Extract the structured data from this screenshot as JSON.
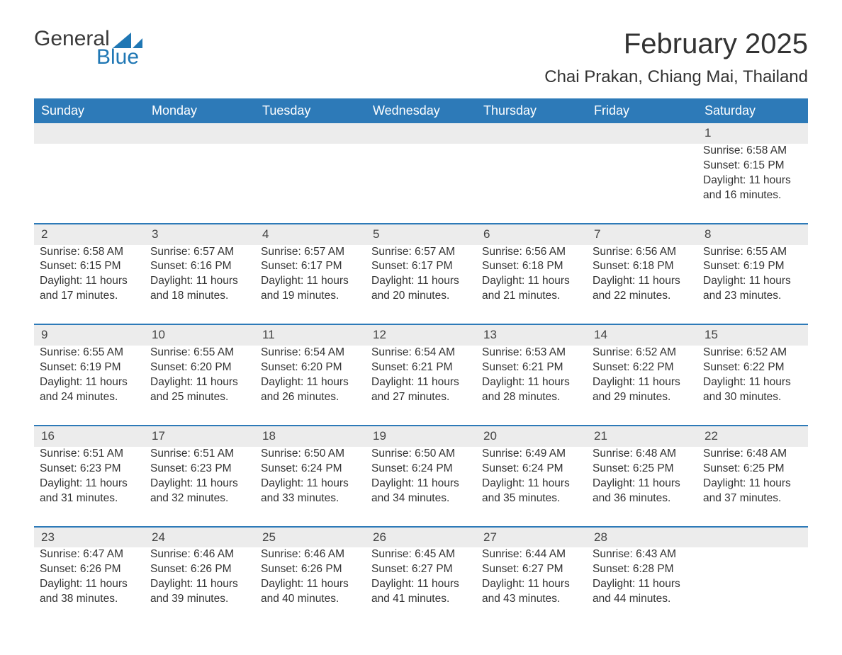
{
  "logo": {
    "top": "General",
    "bottom": "Blue",
    "icon_color": "#1f77b4"
  },
  "title": "February 2025",
  "location": "Chai Prakan, Chiang Mai, Thailand",
  "weekdays": [
    "Sunday",
    "Monday",
    "Tuesday",
    "Wednesday",
    "Thursday",
    "Friday",
    "Saturday"
  ],
  "colors": {
    "header_bg": "#2d7ab8",
    "header_text": "#ffffff",
    "daynum_bg": "#ececec",
    "row_sep": "#2d7ab8",
    "text": "#333333",
    "background": "#ffffff"
  },
  "typography": {
    "title_fontsize": 40,
    "location_fontsize": 24,
    "weekday_fontsize": 18,
    "body_fontsize": 15.5
  },
  "calendar": {
    "type": "table",
    "weeks": [
      [
        null,
        null,
        null,
        null,
        null,
        null,
        {
          "day": "1",
          "sunrise": "Sunrise: 6:58 AM",
          "sunset": "Sunset: 6:15 PM",
          "daylight1": "Daylight: 11 hours",
          "daylight2": "and 16 minutes."
        }
      ],
      [
        {
          "day": "2",
          "sunrise": "Sunrise: 6:58 AM",
          "sunset": "Sunset: 6:15 PM",
          "daylight1": "Daylight: 11 hours",
          "daylight2": "and 17 minutes."
        },
        {
          "day": "3",
          "sunrise": "Sunrise: 6:57 AM",
          "sunset": "Sunset: 6:16 PM",
          "daylight1": "Daylight: 11 hours",
          "daylight2": "and 18 minutes."
        },
        {
          "day": "4",
          "sunrise": "Sunrise: 6:57 AM",
          "sunset": "Sunset: 6:17 PM",
          "daylight1": "Daylight: 11 hours",
          "daylight2": "and 19 minutes."
        },
        {
          "day": "5",
          "sunrise": "Sunrise: 6:57 AM",
          "sunset": "Sunset: 6:17 PM",
          "daylight1": "Daylight: 11 hours",
          "daylight2": "and 20 minutes."
        },
        {
          "day": "6",
          "sunrise": "Sunrise: 6:56 AM",
          "sunset": "Sunset: 6:18 PM",
          "daylight1": "Daylight: 11 hours",
          "daylight2": "and 21 minutes."
        },
        {
          "day": "7",
          "sunrise": "Sunrise: 6:56 AM",
          "sunset": "Sunset: 6:18 PM",
          "daylight1": "Daylight: 11 hours",
          "daylight2": "and 22 minutes."
        },
        {
          "day": "8",
          "sunrise": "Sunrise: 6:55 AM",
          "sunset": "Sunset: 6:19 PM",
          "daylight1": "Daylight: 11 hours",
          "daylight2": "and 23 minutes."
        }
      ],
      [
        {
          "day": "9",
          "sunrise": "Sunrise: 6:55 AM",
          "sunset": "Sunset: 6:19 PM",
          "daylight1": "Daylight: 11 hours",
          "daylight2": "and 24 minutes."
        },
        {
          "day": "10",
          "sunrise": "Sunrise: 6:55 AM",
          "sunset": "Sunset: 6:20 PM",
          "daylight1": "Daylight: 11 hours",
          "daylight2": "and 25 minutes."
        },
        {
          "day": "11",
          "sunrise": "Sunrise: 6:54 AM",
          "sunset": "Sunset: 6:20 PM",
          "daylight1": "Daylight: 11 hours",
          "daylight2": "and 26 minutes."
        },
        {
          "day": "12",
          "sunrise": "Sunrise: 6:54 AM",
          "sunset": "Sunset: 6:21 PM",
          "daylight1": "Daylight: 11 hours",
          "daylight2": "and 27 minutes."
        },
        {
          "day": "13",
          "sunrise": "Sunrise: 6:53 AM",
          "sunset": "Sunset: 6:21 PM",
          "daylight1": "Daylight: 11 hours",
          "daylight2": "and 28 minutes."
        },
        {
          "day": "14",
          "sunrise": "Sunrise: 6:52 AM",
          "sunset": "Sunset: 6:22 PM",
          "daylight1": "Daylight: 11 hours",
          "daylight2": "and 29 minutes."
        },
        {
          "day": "15",
          "sunrise": "Sunrise: 6:52 AM",
          "sunset": "Sunset: 6:22 PM",
          "daylight1": "Daylight: 11 hours",
          "daylight2": "and 30 minutes."
        }
      ],
      [
        {
          "day": "16",
          "sunrise": "Sunrise: 6:51 AM",
          "sunset": "Sunset: 6:23 PM",
          "daylight1": "Daylight: 11 hours",
          "daylight2": "and 31 minutes."
        },
        {
          "day": "17",
          "sunrise": "Sunrise: 6:51 AM",
          "sunset": "Sunset: 6:23 PM",
          "daylight1": "Daylight: 11 hours",
          "daylight2": "and 32 minutes."
        },
        {
          "day": "18",
          "sunrise": "Sunrise: 6:50 AM",
          "sunset": "Sunset: 6:24 PM",
          "daylight1": "Daylight: 11 hours",
          "daylight2": "and 33 minutes."
        },
        {
          "day": "19",
          "sunrise": "Sunrise: 6:50 AM",
          "sunset": "Sunset: 6:24 PM",
          "daylight1": "Daylight: 11 hours",
          "daylight2": "and 34 minutes."
        },
        {
          "day": "20",
          "sunrise": "Sunrise: 6:49 AM",
          "sunset": "Sunset: 6:24 PM",
          "daylight1": "Daylight: 11 hours",
          "daylight2": "and 35 minutes."
        },
        {
          "day": "21",
          "sunrise": "Sunrise: 6:48 AM",
          "sunset": "Sunset: 6:25 PM",
          "daylight1": "Daylight: 11 hours",
          "daylight2": "and 36 minutes."
        },
        {
          "day": "22",
          "sunrise": "Sunrise: 6:48 AM",
          "sunset": "Sunset: 6:25 PM",
          "daylight1": "Daylight: 11 hours",
          "daylight2": "and 37 minutes."
        }
      ],
      [
        {
          "day": "23",
          "sunrise": "Sunrise: 6:47 AM",
          "sunset": "Sunset: 6:26 PM",
          "daylight1": "Daylight: 11 hours",
          "daylight2": "and 38 minutes."
        },
        {
          "day": "24",
          "sunrise": "Sunrise: 6:46 AM",
          "sunset": "Sunset: 6:26 PM",
          "daylight1": "Daylight: 11 hours",
          "daylight2": "and 39 minutes."
        },
        {
          "day": "25",
          "sunrise": "Sunrise: 6:46 AM",
          "sunset": "Sunset: 6:26 PM",
          "daylight1": "Daylight: 11 hours",
          "daylight2": "and 40 minutes."
        },
        {
          "day": "26",
          "sunrise": "Sunrise: 6:45 AM",
          "sunset": "Sunset: 6:27 PM",
          "daylight1": "Daylight: 11 hours",
          "daylight2": "and 41 minutes."
        },
        {
          "day": "27",
          "sunrise": "Sunrise: 6:44 AM",
          "sunset": "Sunset: 6:27 PM",
          "daylight1": "Daylight: 11 hours",
          "daylight2": "and 43 minutes."
        },
        {
          "day": "28",
          "sunrise": "Sunrise: 6:43 AM",
          "sunset": "Sunset: 6:28 PM",
          "daylight1": "Daylight: 11 hours",
          "daylight2": "and 44 minutes."
        },
        null
      ]
    ]
  }
}
